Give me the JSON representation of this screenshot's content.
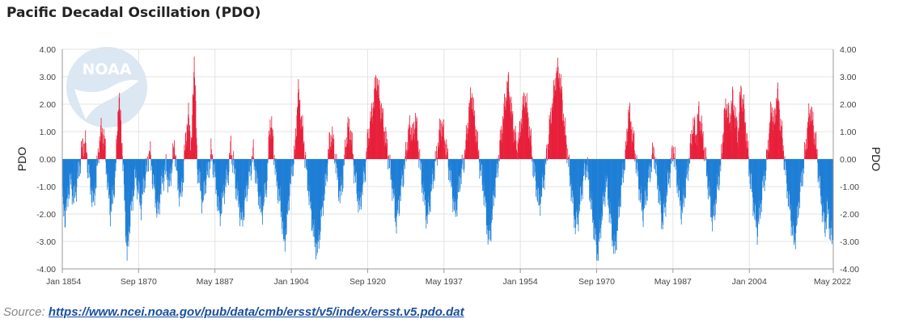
{
  "title": "Pacific Decadal Oscillation (PDO)",
  "source": {
    "prefix": "Source: ",
    "url": "https://www.ncei.noaa.gov/pub/data/cmb/ersst/v5/index/ersst.v5.pdo.dat"
  },
  "logo": {
    "text": "NOAA"
  },
  "colors": {
    "positive": "#e8203b",
    "negative": "#1f7fd6",
    "grid": "#e3e3e3",
    "axis": "#999999",
    "logo": "#dbe7f3"
  },
  "chart_data": {
    "type": "bar",
    "title": "Pacific Decadal Oscillation (PDO)",
    "ylabel": "PDO",
    "ylabel_right": "PDO",
    "ylim": [
      -4,
      4
    ],
    "yticks": [
      4,
      3,
      2,
      1,
      0,
      -1,
      -2,
      -3,
      -4
    ],
    "ytick_labels": [
      "4.00",
      "3.00",
      "2.00",
      "1.00",
      "0.00",
      "-1.00",
      "-2.00",
      "-3.00",
      "-4.00"
    ],
    "xlim": [
      "1854-01",
      "2022-05"
    ],
    "xticks": [
      {
        "label": "Jan 1854",
        "date": "1854-01"
      },
      {
        "label": "Sep 1870",
        "date": "1870-09"
      },
      {
        "label": "May 1887",
        "date": "1887-05"
      },
      {
        "label": "Jan 1904",
        "date": "1904-01"
      },
      {
        "label": "Sep 1920",
        "date": "1920-09"
      },
      {
        "label": "May 1937",
        "date": "1937-05"
      },
      {
        "label": "Jan 1954",
        "date": "1954-01"
      },
      {
        "label": "Sep 1970",
        "date": "1970-09"
      },
      {
        "label": "May 1987",
        "date": "1987-05"
      },
      {
        "label": "Jan 2004",
        "date": "2004-01"
      },
      {
        "label": "May 2022",
        "date": "2022-05"
      }
    ],
    "grid": true,
    "frequency": "monthly",
    "series": [
      {
        "values": [
          -1.6,
          -2.1,
          -1.2,
          -0.8,
          -1.5,
          -0.9,
          -0.3,
          0.4,
          0.6,
          -0.2,
          -1.0,
          -1.6,
          -0.7,
          0.5,
          1.1,
          0.6,
          -0.8,
          -1.9,
          -1.4,
          -0.3,
          2.3,
          1.0,
          -1.2,
          -3.6,
          -2.2,
          -1.4,
          -0.6,
          -1.1,
          -1.7,
          -0.9,
          -0.4,
          0.3,
          -0.5,
          -1.3,
          -2.0,
          -1.1,
          -0.6,
          -0.3,
          -1.0,
          -0.2,
          0.5,
          -0.8,
          -1.4,
          -0.7,
          0.9,
          1.5,
          0.4,
          3.8,
          -0.2,
          -0.9,
          -1.6,
          -0.8,
          -0.4,
          0.2,
          -0.3,
          -1.2,
          -2.1,
          -1.5,
          -0.9,
          -0.6,
          0.4,
          -0.2,
          -1.1,
          -1.7,
          -2.3,
          -1.6,
          -0.9,
          -0.4,
          0.2,
          -0.6,
          -1.3,
          -2.0,
          -1.4,
          -0.7,
          1.4,
          0.8,
          -0.5,
          -1.2,
          -1.8,
          -3.1,
          -2.4,
          -1.1,
          -0.3,
          0.3,
          2.5,
          1.6,
          0.7,
          -0.4,
          -1.3,
          -2.2,
          -3.0,
          -3.3,
          -2.4,
          -1.5,
          -0.8,
          0.4,
          0.9,
          0.3,
          -0.6,
          -1.4,
          -0.7,
          0.5,
          1.2,
          0.8,
          -0.3,
          -1.1,
          -1.8,
          -1.0,
          -0.4,
          0.8,
          1.4,
          2.1,
          3.0,
          2.2,
          1.6,
          0.9,
          0.3,
          -0.5,
          -1.2,
          -2.3,
          -1.7,
          -0.9,
          -0.3,
          0.6,
          1.2,
          0.8,
          1.5,
          0.4,
          -0.6,
          -1.4,
          -2.2,
          -1.6,
          -0.8,
          -0.2,
          0.5,
          1.3,
          0.9,
          0.3,
          -0.4,
          -1.1,
          -2.0,
          -1.4,
          -0.6,
          -0.2,
          0.6,
          1.7,
          2.4,
          1.4,
          0.6,
          -0.3,
          -0.9,
          -1.8,
          -3.0,
          -2.4,
          -1.2,
          -0.5,
          0.4,
          1.3,
          2.1,
          2.8,
          1.9,
          1.1,
          0.4,
          0.8,
          1.7,
          2.3,
          1.6,
          0.7,
          -0.3,
          -0.9,
          -1.7,
          -1.2,
          -0.5,
          0.3,
          1.4,
          2.1,
          3.0,
          3.2,
          2.5,
          1.2,
          0.4,
          -0.6,
          -1.5,
          -2.4,
          -2.1,
          -1.3,
          -0.6,
          -0.2,
          -1.0,
          -2.0,
          -2.8,
          -3.6,
          -2.4,
          -1.6,
          -0.8,
          -1.7,
          -2.6,
          -3.4,
          -2.5,
          -1.4,
          -0.5,
          0.2,
          1.8,
          1.1,
          0.5,
          -0.4,
          -1.2,
          -2.0,
          -1.5,
          -0.8,
          -0.2,
          0.3,
          -0.6,
          -1.4,
          -2.3,
          -1.7,
          -0.9,
          -0.3,
          0.4,
          -0.5,
          -1.3,
          -2.0,
          -1.2,
          -0.5,
          0.3,
          1.3,
          0.8,
          1.7,
          1.1,
          0.4,
          -0.6,
          -1.5,
          -2.3,
          -1.6,
          -0.8,
          -0.2,
          1.4,
          2.0,
          1.3,
          2.2,
          1.6,
          0.8,
          2.5,
          1.9,
          0.9,
          -0.3,
          -1.2,
          -2.0,
          -2.6,
          -1.8,
          -0.9,
          -0.4,
          0.8,
          1.9,
          1.2,
          2.5,
          1.5,
          0.6,
          -0.5,
          -1.4,
          -2.2,
          -3.0,
          -2.4,
          -1.3,
          -0.6,
          0.2,
          1.3,
          1.8,
          1.1,
          0.4,
          -0.8,
          -1.7,
          -2.5,
          -1.8,
          -2.7,
          -3.0
        ]
      }
    ]
  }
}
